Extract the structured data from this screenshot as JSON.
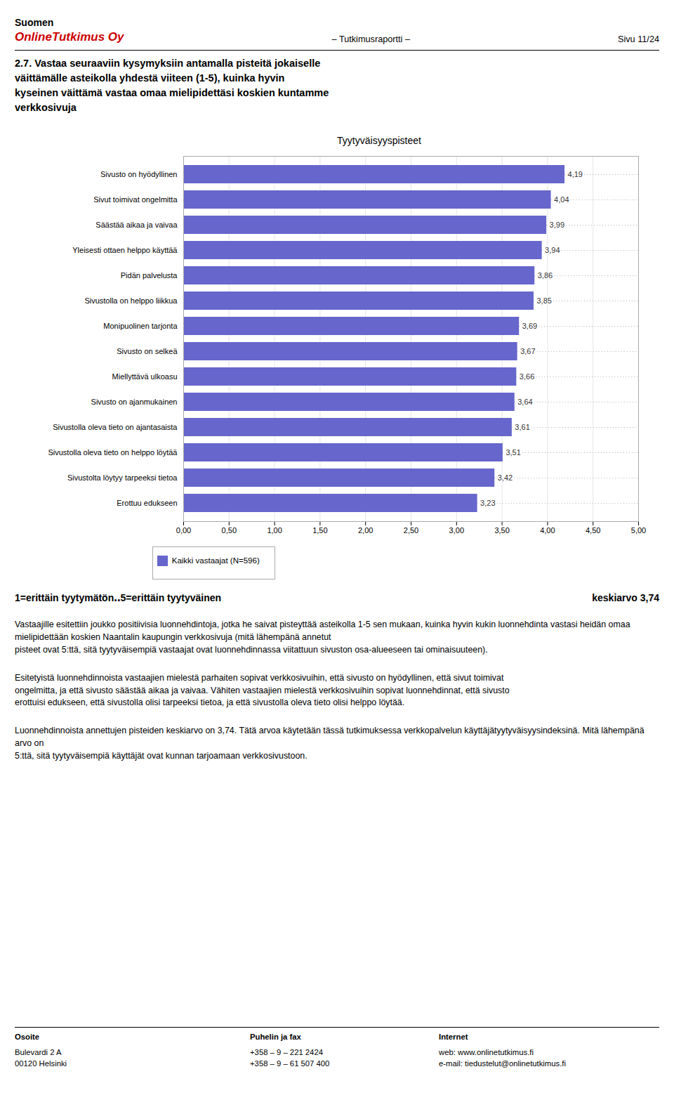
{
  "chart_data": {
    "type": "bar",
    "orientation": "horizontal",
    "title": "Tyytyväisyyspisteet",
    "categories": [
      "Sivusto on hyödyllinen",
      "Sivut toimivat ongelmitta",
      "Säästää aikaa ja vaivaa",
      "Yleisesti ottaen helppo käyttää",
      "Pidän palvelusta",
      "Sivustolla on helppo liikkua",
      "Monipuolinen tarjonta",
      "Sivusto on selkeä",
      "Miellyttävä ulkoasu",
      "Sivusto on ajanmukainen",
      "Sivustolla oleva tieto on ajantasaista",
      "Sivustolla oleva tieto on helppo löytää",
      "Sivustolta löytyy tarpeeksi tietoa",
      "Erottuu edukseen"
    ],
    "series": [
      {
        "name": "Kaikki vastaajat (N=596)",
        "color": "#6666cc",
        "values": [
          4.19,
          4.04,
          3.99,
          3.94,
          3.86,
          3.85,
          3.69,
          3.67,
          3.66,
          3.64,
          3.61,
          3.51,
          3.42,
          3.23
        ],
        "value_labels": [
          "4,19",
          "4,04",
          "3,99",
          "3,94",
          "3,86",
          "3,85",
          "3,69",
          "3,67",
          "3,66",
          "3,64",
          "3,61",
          "3,51",
          "3,42",
          "3,23"
        ]
      }
    ],
    "data_labels": true,
    "xlim": [
      0,
      5.0
    ],
    "xticks": [
      {
        "value": 0.0,
        "label": "0,00"
      },
      {
        "value": 0.5,
        "label": "0,50"
      },
      {
        "value": 1.0,
        "label": "1,00"
      },
      {
        "value": 1.5,
        "label": "1,50"
      },
      {
        "value": 2.0,
        "label": "2,00"
      },
      {
        "value": 2.5,
        "label": "2,50"
      },
      {
        "value": 3.0,
        "label": "3,00"
      },
      {
        "value": 3.5,
        "label": "3,50"
      },
      {
        "value": 4.0,
        "label": "4,00"
      },
      {
        "value": 4.5,
        "label": "4,50"
      },
      {
        "value": 5.0,
        "label": "5,00"
      }
    ],
    "grid": true,
    "legend": "bottom",
    "annotations": [
      {
        "text": "Suomen"
      },
      {
        "text": "OnlineTutkimus Oy",
        "color": "#cc0000"
      },
      {
        "text": "– Tutkimusraportti –"
      },
      {
        "text": "Sivu 11/24"
      },
      {
        "text": "2.7. Vastaa seuraaviin kysymyksiin antamalla pisteitä jokaiselle\nväittämälle asteikolla yhdestä viiteen (1-5), kuinka hyvin\nkyseinen väittämä vastaa omaa mielipidettäsi koskien kuntamme\nverkkosivuja"
      },
      {
        "text": "1=erittäin tyytymätön‥5=erittäin tyytyväinen"
      },
      {
        "text": "keskiarvo 3,74"
      },
      {
        "text": "Vastaajille esitettiin joukko positiivisia luonnehdintoja, jotka he saivat pisteyttää asteikolla 1-5 sen mukaan, kuinka hyvin kukin luonnehdinta vastasi heidän omaa mielipidettään koskien Naantalin kaupungin verkkosivuja (mitä lähempänä annetut\npisteet ovat 5:ttä, sitä tyytyväisempiä vastaajat ovat luonnehdinnassa viitattuun sivuston osa-alueeseen tai ominaisuuteen)."
      },
      {
        "text": "Esitetyistä luonnehdinnoista vastaajien mielestä parhaiten sopivat verkkosivuihin, että sivusto on hyödyllinen, että sivut toimivat\nongelmitta, ja että sivusto säästää aikaa ja vaivaa. Vähiten vastaajien mielestä verkkosivuihin sopivat luonnehdinnat, että sivusto\nerottuisi edukseen, että sivustolla olisi tarpeeksi tietoa, ja että sivustolla oleva tieto olisi helppo löytää."
      },
      {
        "text": "Luonnehdinnoista annettujen pisteiden keskiarvo on 3,74. Tätä arvoa käytetään tässä tutkimuksessa verkkopalvelun ​käyttäjätyytyväisyysindeksinä​. Mitä lähempänä arvo on\n5:ttä, sitä tyytyväisempiä käyttäjät ovat kunnan tarjoamaan verkkosivustoon."
      },
      {
        "text": "Osoite"
      },
      {
        "text": "Puhelin ja fax"
      },
      {
        "text": "Internet"
      },
      {
        "text": "Bulevardi 2 A\n00120 Helsinki"
      },
      {
        "text": "+358 – 9 – 221 2424\n+358 – 9 – 61 507 400"
      },
      {
        "text": "web: www.onlinetutkimus.fi\ne-mail: tiedustelut@onlinetutkimus.fi"
      }
    ]
  }
}
